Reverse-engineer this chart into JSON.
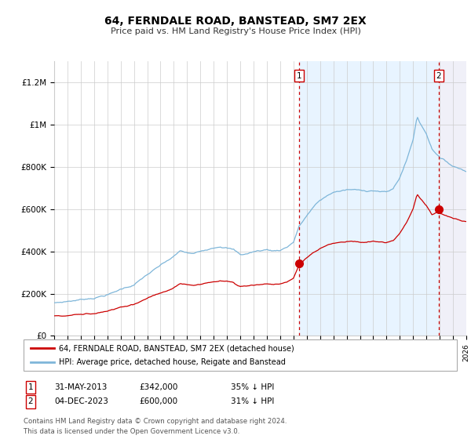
{
  "title": "64, FERNDALE ROAD, BANSTEAD, SM7 2EX",
  "subtitle": "Price paid vs. HM Land Registry's House Price Index (HPI)",
  "x_start_year": 1995,
  "x_end_year": 2026,
  "ylim": [
    0,
    1300000
  ],
  "yticks": [
    0,
    200000,
    400000,
    600000,
    800000,
    1000000,
    1200000
  ],
  "ytick_labels": [
    "£0",
    "£200K",
    "£400K",
    "£600K",
    "£800K",
    "£1M",
    "£1.2M"
  ],
  "sale1_year": 2013.42,
  "sale1_price": 342000,
  "sale1_label": "1",
  "sale1_date": "31-MAY-2013",
  "sale1_pct": "35%",
  "sale2_year": 2023.92,
  "sale2_price": 600000,
  "sale2_label": "2",
  "sale2_date": "04-DEC-2023",
  "sale2_pct": "31%",
  "hpi_color": "#7EB6D9",
  "price_color": "#CC0000",
  "vline_color": "#CC0000",
  "shade_color": "#DDEEFF",
  "legend_label1": "64, FERNDALE ROAD, BANSTEAD, SM7 2EX (detached house)",
  "legend_label2": "HPI: Average price, detached house, Reigate and Banstead",
  "footer": "Contains HM Land Registry data © Crown copyright and database right 2024.\nThis data is licensed under the Open Government Licence v3.0.",
  "background_color": "#FFFFFF",
  "grid_color": "#CCCCCC"
}
